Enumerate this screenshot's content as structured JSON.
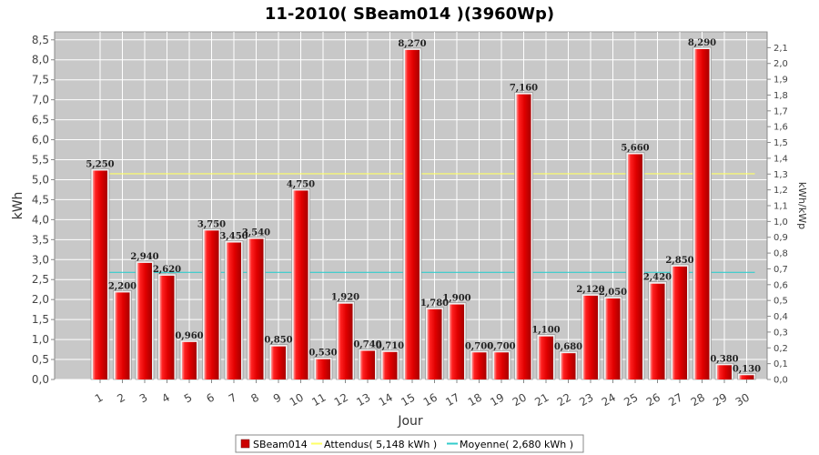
{
  "chart_data": {
    "type": "bar",
    "title": "11-2010( SBeam014 )(3960Wp)",
    "xlabel": "Jour",
    "ylabel": "kWh",
    "y2label": "kWh/kWp",
    "ylim": [
      0,
      8.7
    ],
    "y2lim": [
      0,
      2.2
    ],
    "grid": true,
    "legend_position": "bottom",
    "categories": [
      "1",
      "2",
      "3",
      "4",
      "5",
      "6",
      "7",
      "8",
      "9",
      "10",
      "11",
      "12",
      "13",
      "14",
      "15",
      "16",
      "17",
      "18",
      "19",
      "20",
      "21",
      "22",
      "23",
      "24",
      "25",
      "26",
      "27",
      "28",
      "29",
      "30"
    ],
    "y_ticks": [
      "0,0",
      "0,5",
      "1,0",
      "1,5",
      "2,0",
      "2,5",
      "3,0",
      "3,5",
      "4,0",
      "4,5",
      "5,0",
      "5,5",
      "6,0",
      "6,5",
      "7,0",
      "7,5",
      "8,0",
      "8,5"
    ],
    "y2_ticks": [
      "0,0",
      "0,1",
      "0,2",
      "0,3",
      "0,4",
      "0,5",
      "0,6",
      "0,7",
      "0,8",
      "0,9",
      "1,0",
      "1,1",
      "1,2",
      "1,3",
      "1,4",
      "1,5",
      "1,6",
      "1,7",
      "1,8",
      "1,9",
      "2,0",
      "2,1"
    ],
    "series": [
      {
        "name": "SBeam014",
        "color": "#ee0000",
        "values": [
          5.25,
          2.2,
          2.94,
          2.62,
          0.96,
          3.75,
          3.45,
          3.54,
          0.85,
          4.75,
          0.53,
          1.92,
          0.74,
          0.71,
          8.27,
          1.78,
          1.9,
          0.7,
          0.7,
          7.16,
          1.1,
          0.68,
          2.12,
          2.05,
          5.66,
          2.42,
          2.85,
          8.29,
          0.38,
          0.13
        ],
        "labels": [
          "5,250",
          "2,200",
          "2,940",
          "2,620",
          "0,960",
          "3,750",
          "3,450",
          "3,540",
          "0,850",
          "4,750",
          "0,530",
          "1,920",
          "0,740",
          "0,710",
          "8,270",
          "1,780",
          "1,900",
          "0,700",
          "0,700",
          "7,160",
          "1,100",
          "0,680",
          "2,120",
          "2,050",
          "5,660",
          "2,420",
          "2,850",
          "8,290",
          "0,380",
          "0,130"
        ]
      }
    ],
    "reference_lines": [
      {
        "name": "Attendus( 5,148 kWh )",
        "value": 5.148,
        "color": "#ffff66"
      },
      {
        "name": "Moyenne( 2,680 kWh )",
        "value": 2.68,
        "color": "#33cccc"
      }
    ]
  }
}
